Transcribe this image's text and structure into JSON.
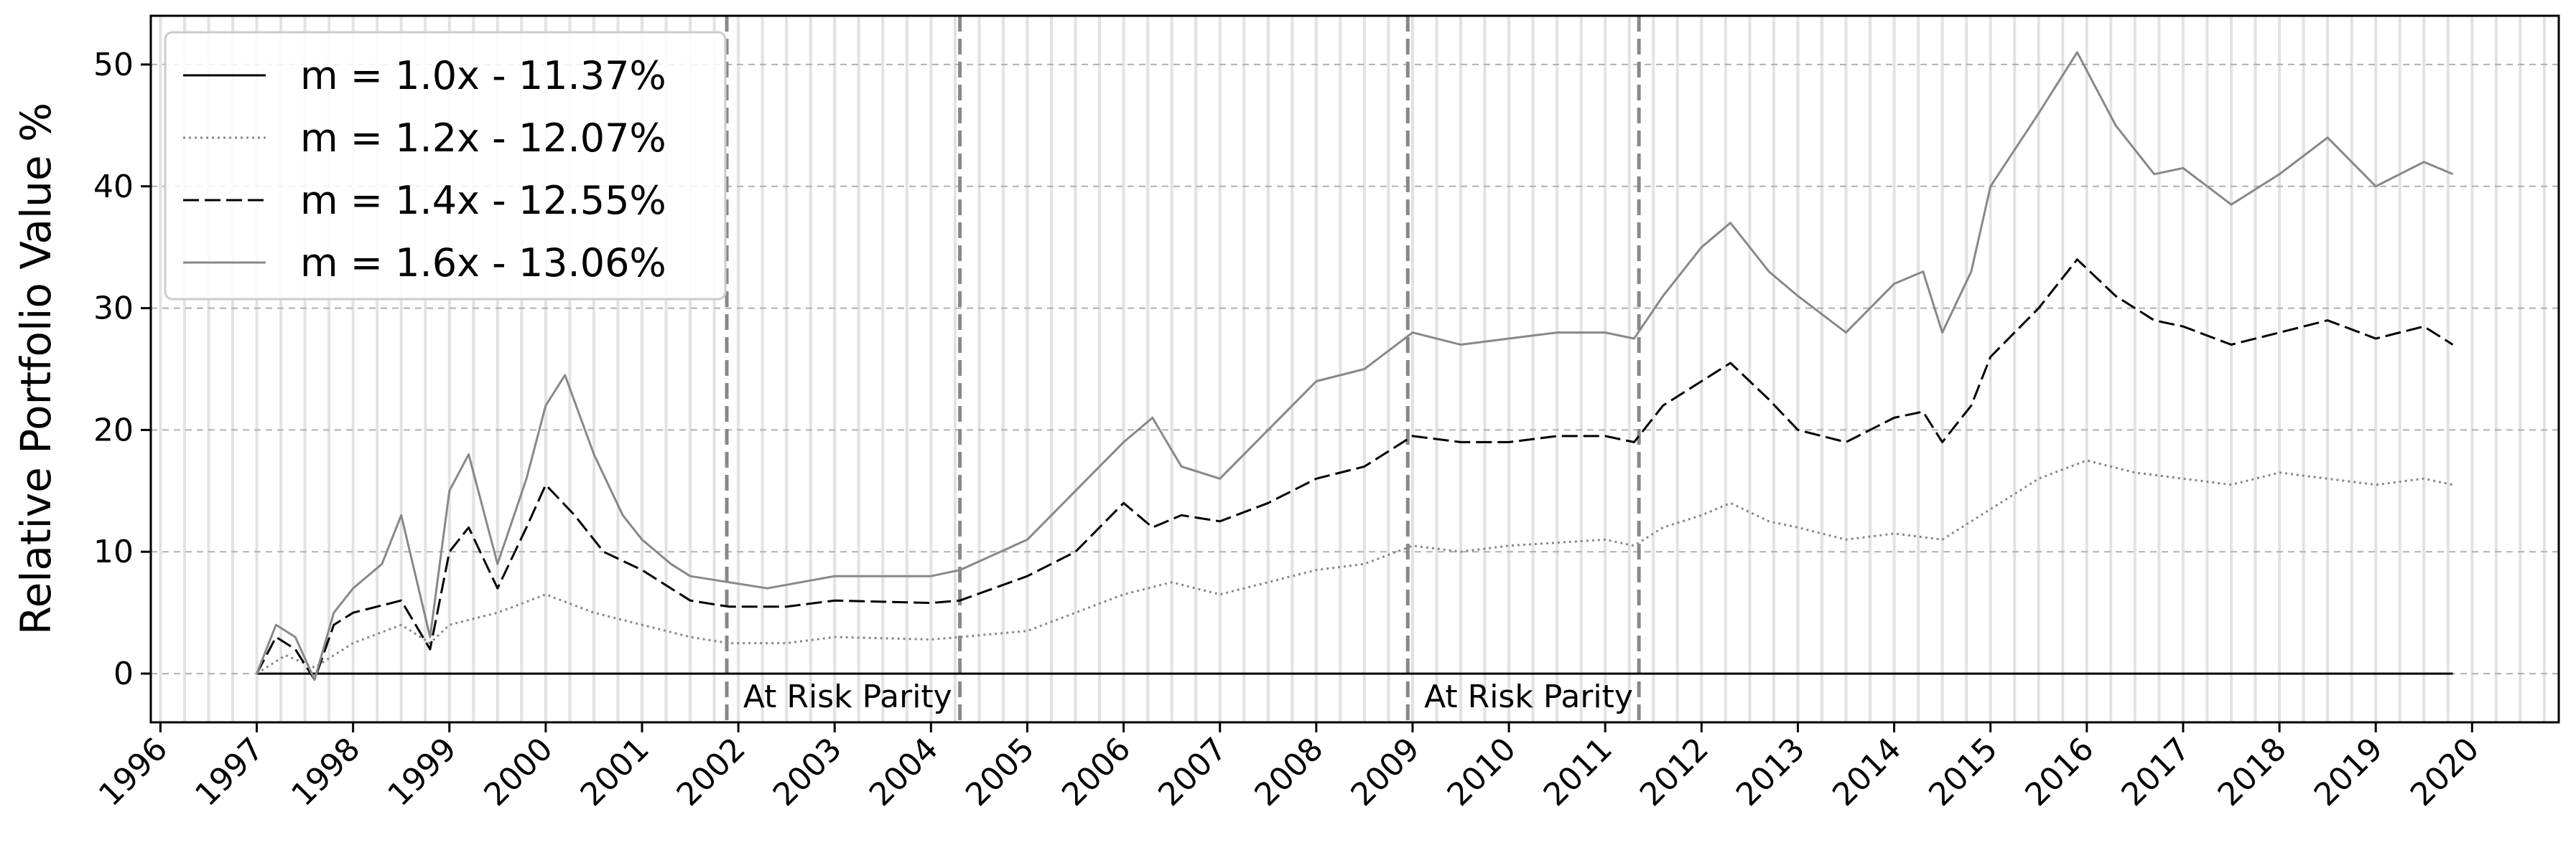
{
  "chart_data": {
    "type": "line",
    "title": "",
    "xlabel": "",
    "ylabel": "Relative Portfolio Value %",
    "xlim": [
      1995.9,
      2020.9
    ],
    "ylim": [
      -4,
      54
    ],
    "x_ticks": [
      "1996",
      "1997",
      "1998",
      "1999",
      "2000",
      "2001",
      "2002",
      "2003",
      "2004",
      "2005",
      "2006",
      "2007",
      "2008",
      "2009",
      "2010",
      "2011",
      "2012",
      "2013",
      "2014",
      "2015",
      "2016",
      "2017",
      "2018",
      "2019",
      "2020"
    ],
    "y_ticks": [
      0,
      10,
      20,
      30,
      40,
      50
    ],
    "grid": {
      "horizontal": true,
      "style": "dashed"
    },
    "legend_position": "top-left",
    "regime_lines": [
      2001.88,
      2004.3,
      2008.95,
      2011.35
    ],
    "annotations": [
      {
        "text": "At Risk Parity",
        "x": 2002.05,
        "y": -1.7
      },
      {
        "text": "At Risk Parity",
        "x": 2009.12,
        "y": -1.7
      }
    ],
    "series": [
      {
        "name": "m = 1.0x - 11.37%",
        "style": "solid-black",
        "points": [
          [
            1997.0,
            0
          ],
          [
            2019.8,
            0
          ]
        ]
      },
      {
        "name": "m = 1.2x - 12.07%",
        "style": "dotted-gray",
        "points": [
          [
            1997.0,
            0
          ],
          [
            1997.3,
            1.5
          ],
          [
            1997.6,
            0.5
          ],
          [
            1998.0,
            2.5
          ],
          [
            1998.5,
            4
          ],
          [
            1998.8,
            2.5
          ],
          [
            1999.0,
            4
          ],
          [
            1999.5,
            5
          ],
          [
            2000.0,
            6.5
          ],
          [
            2000.5,
            5
          ],
          [
            2001.0,
            4
          ],
          [
            2001.5,
            3
          ],
          [
            2001.9,
            2.5
          ],
          [
            2002.5,
            2.5
          ],
          [
            2003.0,
            3
          ],
          [
            2004.0,
            2.8
          ],
          [
            2004.3,
            3
          ],
          [
            2005.0,
            3.5
          ],
          [
            2005.5,
            5
          ],
          [
            2006.0,
            6.5
          ],
          [
            2006.5,
            7.5
          ],
          [
            2007.0,
            6.5
          ],
          [
            2008.0,
            8.5
          ],
          [
            2008.5,
            9
          ],
          [
            2009.0,
            10.5
          ],
          [
            2009.5,
            10
          ],
          [
            2010.0,
            10.5
          ],
          [
            2011.0,
            11
          ],
          [
            2011.3,
            10.5
          ],
          [
            2011.6,
            12
          ],
          [
            2012.0,
            13
          ],
          [
            2012.3,
            14
          ],
          [
            2012.7,
            12.5
          ],
          [
            2013.0,
            12
          ],
          [
            2013.5,
            11
          ],
          [
            2014.0,
            11.5
          ],
          [
            2014.5,
            11
          ],
          [
            2015.0,
            13.5
          ],
          [
            2015.5,
            16
          ],
          [
            2016.0,
            17.5
          ],
          [
            2016.5,
            16.5
          ],
          [
            2017.0,
            16
          ],
          [
            2017.5,
            15.5
          ],
          [
            2018.0,
            16.5
          ],
          [
            2018.5,
            16
          ],
          [
            2019.0,
            15.5
          ],
          [
            2019.5,
            16
          ],
          [
            2019.8,
            15.5
          ]
        ]
      },
      {
        "name": "m = 1.4x - 12.55%",
        "style": "dashed-black",
        "points": [
          [
            1997.0,
            0
          ],
          [
            1997.2,
            3
          ],
          [
            1997.4,
            2
          ],
          [
            1997.6,
            -0.5
          ],
          [
            1997.8,
            4
          ],
          [
            1998.0,
            5
          ],
          [
            1998.5,
            6
          ],
          [
            1998.8,
            2
          ],
          [
            1999.0,
            10
          ],
          [
            1999.2,
            12
          ],
          [
            1999.5,
            7
          ],
          [
            1999.8,
            12
          ],
          [
            2000.0,
            15.5
          ],
          [
            2000.3,
            13
          ],
          [
            2000.6,
            10
          ],
          [
            2001.0,
            8.5
          ],
          [
            2001.5,
            6
          ],
          [
            2001.9,
            5.5
          ],
          [
            2002.5,
            5.5
          ],
          [
            2003.0,
            6
          ],
          [
            2004.0,
            5.8
          ],
          [
            2004.3,
            6
          ],
          [
            2005.0,
            8
          ],
          [
            2005.5,
            10
          ],
          [
            2006.0,
            14
          ],
          [
            2006.3,
            12
          ],
          [
            2006.6,
            13
          ],
          [
            2007.0,
            12.5
          ],
          [
            2007.5,
            14
          ],
          [
            2008.0,
            16
          ],
          [
            2008.5,
            17
          ],
          [
            2009.0,
            19.5
          ],
          [
            2009.5,
            19
          ],
          [
            2010.0,
            19
          ],
          [
            2010.5,
            19.5
          ],
          [
            2011.0,
            19.5
          ],
          [
            2011.3,
            19
          ],
          [
            2011.6,
            22
          ],
          [
            2012.0,
            24
          ],
          [
            2012.3,
            25.5
          ],
          [
            2012.7,
            22.5
          ],
          [
            2013.0,
            20
          ],
          [
            2013.5,
            19
          ],
          [
            2014.0,
            21
          ],
          [
            2014.3,
            21.5
          ],
          [
            2014.5,
            19
          ],
          [
            2014.8,
            22
          ],
          [
            2015.0,
            26
          ],
          [
            2015.5,
            30
          ],
          [
            2015.9,
            34
          ],
          [
            2016.3,
            31
          ],
          [
            2016.7,
            29
          ],
          [
            2017.0,
            28.5
          ],
          [
            2017.5,
            27
          ],
          [
            2018.0,
            28
          ],
          [
            2018.5,
            29
          ],
          [
            2019.0,
            27.5
          ],
          [
            2019.5,
            28.5
          ],
          [
            2019.8,
            27
          ]
        ]
      },
      {
        "name": "m = 1.6x - 13.06%",
        "style": "solid-gray",
        "points": [
          [
            1997.0,
            0
          ],
          [
            1997.2,
            4
          ],
          [
            1997.4,
            3
          ],
          [
            1997.6,
            -0.5
          ],
          [
            1997.8,
            5
          ],
          [
            1998.0,
            7
          ],
          [
            1998.3,
            9
          ],
          [
            1998.5,
            13
          ],
          [
            1998.8,
            3
          ],
          [
            1999.0,
            15
          ],
          [
            1999.2,
            18
          ],
          [
            1999.5,
            9
          ],
          [
            1999.8,
            16
          ],
          [
            2000.0,
            22
          ],
          [
            2000.2,
            24.5
          ],
          [
            2000.5,
            18
          ],
          [
            2000.8,
            13
          ],
          [
            2001.0,
            11
          ],
          [
            2001.3,
            9
          ],
          [
            2001.5,
            8
          ],
          [
            2001.9,
            7.5
          ],
          [
            2002.3,
            7
          ],
          [
            2003.0,
            8
          ],
          [
            2004.0,
            8
          ],
          [
            2004.3,
            8.5
          ],
          [
            2005.0,
            11
          ],
          [
            2005.5,
            15
          ],
          [
            2006.0,
            19
          ],
          [
            2006.3,
            21
          ],
          [
            2006.6,
            17
          ],
          [
            2007.0,
            16
          ],
          [
            2007.5,
            20
          ],
          [
            2008.0,
            24
          ],
          [
            2008.5,
            25
          ],
          [
            2009.0,
            28
          ],
          [
            2009.5,
            27
          ],
          [
            2010.0,
            27.5
          ],
          [
            2010.5,
            28
          ],
          [
            2011.0,
            28
          ],
          [
            2011.3,
            27.5
          ],
          [
            2011.6,
            31
          ],
          [
            2012.0,
            35
          ],
          [
            2012.3,
            37
          ],
          [
            2012.7,
            33
          ],
          [
            2013.0,
            31
          ],
          [
            2013.5,
            28
          ],
          [
            2014.0,
            32
          ],
          [
            2014.3,
            33
          ],
          [
            2014.5,
            28
          ],
          [
            2014.8,
            33
          ],
          [
            2015.0,
            40
          ],
          [
            2015.5,
            46
          ],
          [
            2015.9,
            51
          ],
          [
            2016.3,
            45
          ],
          [
            2016.7,
            41
          ],
          [
            2017.0,
            41.5
          ],
          [
            2017.5,
            38.5
          ],
          [
            2018.0,
            41
          ],
          [
            2018.5,
            44
          ],
          [
            2019.0,
            40
          ],
          [
            2019.5,
            42
          ],
          [
            2019.8,
            41
          ]
        ]
      }
    ]
  }
}
